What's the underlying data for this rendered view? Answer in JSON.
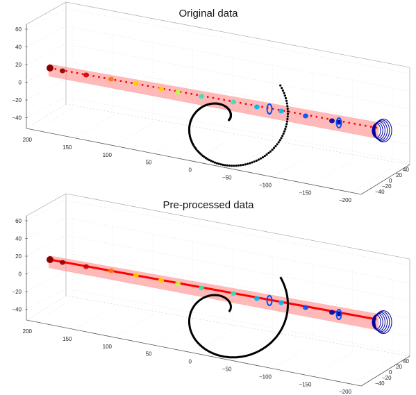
{
  "chart_data": [
    {
      "type": "scatter",
      "title": "Original data",
      "projection": "3d",
      "grid": true,
      "zlim": [
        -60,
        60
      ],
      "xlim": [
        -220,
        220
      ],
      "ylim": [
        -45,
        45
      ],
      "ticks": {
        "z": [
          "60",
          "40",
          "20",
          "0",
          "−20",
          "−40"
        ],
        "x": [
          "200",
          "150",
          "100",
          "50",
          "0",
          "−50",
          "−100",
          "−150",
          "−200"
        ],
        "y": [
          "40",
          "20",
          "0",
          "−20",
          "−40"
        ]
      },
      "series": [
        {
          "style": "spiral-points",
          "color": "#000000"
        },
        {
          "style": "centerline",
          "color": "#ff0000"
        },
        {
          "style": "cross-section-rings",
          "palette": [
            "#8b0000",
            "#d40000",
            "#ff7a00",
            "#ffd000",
            "#b8ff40",
            "#40e0c0",
            "#00b8ff",
            "#0050ff",
            "#0000a0"
          ]
        }
      ]
    },
    {
      "type": "line",
      "title": "Pre-processed data",
      "projection": "3d",
      "grid": true,
      "zlim": [
        -60,
        60
      ],
      "xlim": [
        -220,
        220
      ],
      "ylim": [
        -45,
        45
      ],
      "ticks": {
        "z": [
          "60",
          "40",
          "20",
          "0",
          "−20",
          "−40"
        ],
        "x": [
          "200",
          "150",
          "100",
          "50",
          "0",
          "−50",
          "−100",
          "−150",
          "−200"
        ],
        "y": [
          "40",
          "20",
          "0",
          "−20",
          "−40"
        ]
      },
      "series": [
        {
          "style": "spiral-curve",
          "color": "#000000"
        },
        {
          "style": "centerline",
          "color": "#ff0000"
        },
        {
          "style": "cross-section-rings",
          "palette": [
            "#8b0000",
            "#d40000",
            "#ff7a00",
            "#ffd000",
            "#b8ff40",
            "#40e0c0",
            "#00b8ff",
            "#0050ff",
            "#0000a0"
          ]
        }
      ]
    }
  ]
}
